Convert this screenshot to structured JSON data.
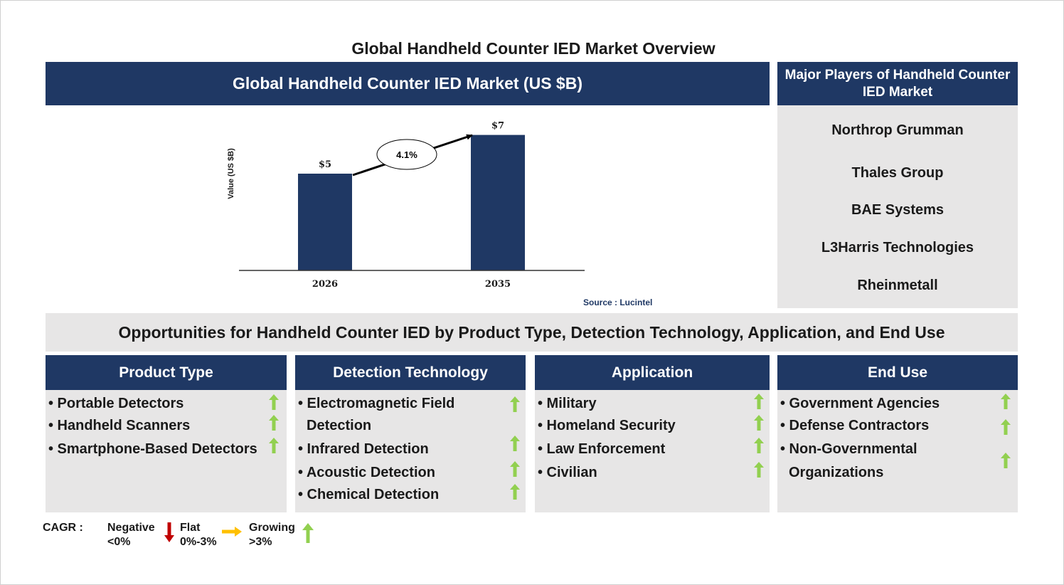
{
  "title": "Global Handheld Counter IED Market Overview",
  "chart_panel": {
    "title": "Global Handheld Counter IED Market (US $B)",
    "source": "Source : Lucintel"
  },
  "chart_data": {
    "type": "bar",
    "categories": [
      "2026",
      "2035"
    ],
    "values": [
      5,
      7
    ],
    "value_labels": [
      "$5",
      "$7"
    ],
    "ylabel": "Value (US $B)",
    "xlabel": "",
    "cagr_label": "4.1%",
    "bar_color": "#1f3864"
  },
  "players": {
    "title": "Major Players of Handheld Counter IED Market",
    "items": [
      "Northrop Grumman",
      "Thales Group",
      "BAE Systems",
      "L3Harris Technologies",
      "Rheinmetall"
    ]
  },
  "opportunities": {
    "title": "Opportunities for Handheld Counter IED by Product Type, Detection Technology, Application, and End Use",
    "columns": [
      {
        "header": "Product Type",
        "items": [
          "• Portable Detectors",
          "• Handheld Scanners",
          "• Smartphone-Based Detectors"
        ]
      },
      {
        "header": "Detection Technology",
        "items": [
          "• Electromagnetic Field",
          "Detection",
          "• Infrared Detection",
          "• Acoustic Detection",
          "• Chemical Detection"
        ]
      },
      {
        "header": "Application",
        "items": [
          "• Military",
          "• Homeland Security",
          "• Law Enforcement",
          "• Civilian"
        ]
      },
      {
        "header": "End Use",
        "items": [
          "• Government Agencies",
          "• Defense Contractors",
          "• Non-Governmental",
          "Organizations"
        ]
      }
    ]
  },
  "legend": {
    "label": "CAGR :",
    "negative": {
      "line1": "Negative",
      "line2": "<0%",
      "color": "#c00000"
    },
    "flat": {
      "line1": "Flat",
      "line2": "0%-3%",
      "color": "#ffc000"
    },
    "growing": {
      "line1": "Growing",
      "line2": ">3%",
      "color": "#92d050"
    }
  },
  "colors": {
    "header_bg": "#1f3864",
    "panel_bg": "#e7e6e6",
    "growth_arrow": "#92d050"
  }
}
